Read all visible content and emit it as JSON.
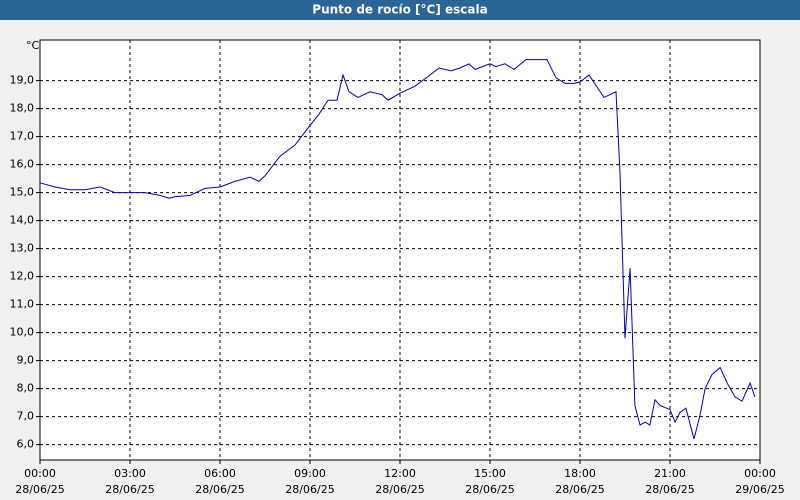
{
  "chart_data": {
    "type": "line",
    "title": "Punto de rocío [°C] escala",
    "y_unit": "°C",
    "x": [
      0,
      0.5,
      1,
      1.5,
      2,
      2.5,
      3,
      3.5,
      4,
      4.3,
      4.5,
      5,
      5.5,
      6,
      6.5,
      7,
      7.3,
      7.5,
      8,
      8.5,
      9,
      9.3,
      9.6,
      9.9,
      10.1,
      10.3,
      10.6,
      11,
      11.4,
      11.6,
      12,
      12.5,
      13,
      13.3,
      13.7,
      14,
      14.3,
      14.5,
      15,
      15.2,
      15.5,
      15.8,
      16.2,
      16.7,
      16.9,
      17.2,
      17.5,
      17.8,
      18,
      18.3,
      18.8,
      19.2,
      19.33,
      19.5,
      19.67,
      19.83,
      20,
      20.17,
      20.33,
      20.5,
      20.67,
      21,
      21.17,
      21.33,
      21.53,
      21.8,
      22,
      22.17,
      22.4,
      22.67,
      22.93,
      23.17,
      23.4,
      23.67,
      23.83
    ],
    "series": [
      {
        "name": "Punto de rocío",
        "color": "#0000b4",
        "values": [
          15.35,
          15.2,
          15.1,
          15.1,
          15.2,
          15.0,
          15.0,
          15.0,
          14.9,
          14.8,
          14.85,
          14.9,
          15.15,
          15.2,
          15.4,
          15.55,
          15.4,
          15.6,
          16.3,
          16.7,
          17.4,
          17.8,
          18.3,
          18.3,
          19.2,
          18.6,
          18.4,
          18.6,
          18.5,
          18.3,
          18.55,
          18.8,
          19.2,
          19.45,
          19.35,
          19.45,
          19.6,
          19.4,
          19.6,
          19.5,
          19.6,
          19.4,
          19.75,
          19.75,
          19.75,
          19.1,
          18.9,
          18.9,
          18.95,
          19.2,
          18.4,
          18.6,
          15.8,
          9.8,
          12.3,
          7.4,
          6.7,
          6.8,
          6.7,
          7.6,
          7.4,
          7.25,
          6.8,
          7.15,
          7.3,
          6.2,
          7.05,
          8.0,
          8.5,
          8.75,
          8.15,
          7.7,
          7.55,
          8.2,
          7.7
        ]
      }
    ],
    "xlim": [
      0,
      24
    ],
    "xticks": [
      {
        "value": 0,
        "label": "00:00"
      },
      {
        "value": 3,
        "label": "03:00"
      },
      {
        "value": 6,
        "label": "06:00"
      },
      {
        "value": 9,
        "label": "09:00"
      },
      {
        "value": 12,
        "label": "12:00"
      },
      {
        "value": 15,
        "label": "15:00"
      },
      {
        "value": 18,
        "label": "18:00"
      },
      {
        "value": 21,
        "label": "21:00"
      },
      {
        "value": 24,
        "label": "00:00"
      }
    ],
    "xtick_dates": [
      "28/06/25",
      "28/06/25",
      "28/06/25",
      "28/06/25",
      "28/06/25",
      "28/06/25",
      "28/06/25",
      "28/06/25",
      "29/06/25"
    ],
    "ylim": [
      5.45,
      20.45
    ],
    "yticks": [
      {
        "value": 6,
        "label": "6,0"
      },
      {
        "value": 7,
        "label": "7,0"
      },
      {
        "value": 8,
        "label": "8,0"
      },
      {
        "value": 9,
        "label": "9,0"
      },
      {
        "value": 10,
        "label": "10,0"
      },
      {
        "value": 11,
        "label": "11,0"
      },
      {
        "value": 12,
        "label": "12,0"
      },
      {
        "value": 13,
        "label": "13,0"
      },
      {
        "value": 14,
        "label": "14,0"
      },
      {
        "value": 15,
        "label": "15,0"
      },
      {
        "value": 16,
        "label": "16,0"
      },
      {
        "value": 17,
        "label": "17,0"
      },
      {
        "value": 18,
        "label": "18,0"
      },
      {
        "value": 19,
        "label": "19,0"
      }
    ],
    "grid": true
  }
}
